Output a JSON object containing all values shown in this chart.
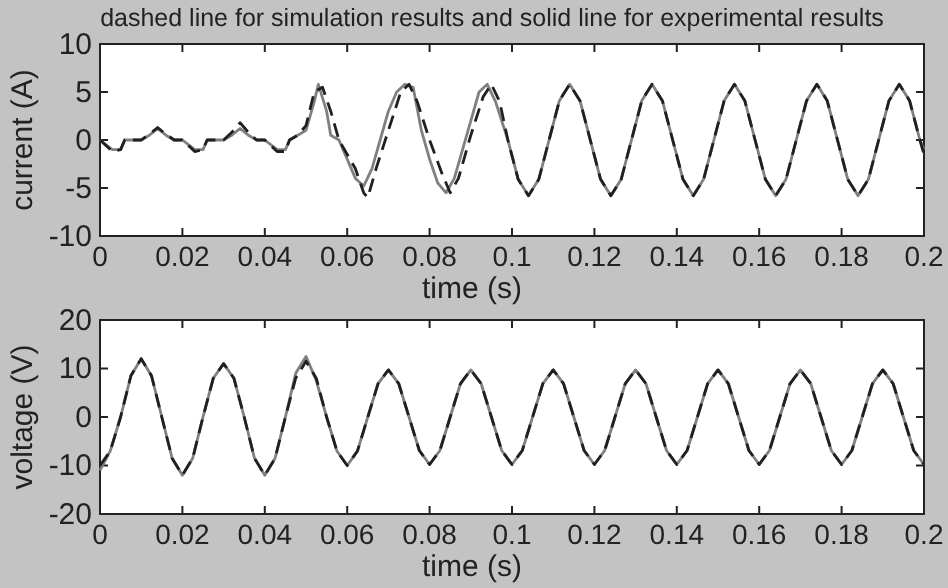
{
  "chart_data": [
    {
      "type": "line",
      "title": "dashed line for simulation results and solid line for experimental results",
      "xlabel": "time (s)",
      "ylabel": "current (A)",
      "xlim": [
        0,
        0.2
      ],
      "xticks": [
        0,
        0.02,
        0.04,
        0.06,
        0.08,
        0.1,
        0.12,
        0.14,
        0.16,
        0.18,
        0.2
      ],
      "ylim": [
        -10,
        10
      ],
      "yticks": [
        -10,
        -5,
        0,
        5,
        10
      ],
      "marker": "none",
      "series": [
        {
          "color": "#808080",
          "line_style": "solid",
          "x": [
            0,
            0.003,
            0.005,
            0.006,
            0.01,
            0.012,
            0.014,
            0.016,
            0.018,
            0.02,
            0.023,
            0.025,
            0.026,
            0.03,
            0.032,
            0.034,
            0.036,
            0.038,
            0.04,
            0.043,
            0.045,
            0.046,
            0.048,
            0.05,
            0.052,
            0.053,
            0.055,
            0.056,
            0.058,
            0.06,
            0.062,
            0.064,
            0.066,
            0.068,
            0.07,
            0.072,
            0.074,
            0.076,
            0.078,
            0.08,
            0.082,
            0.084,
            0.086,
            0.088,
            0.09,
            0.092,
            0.094,
            0.096,
            0.099,
            0.1015,
            0.104,
            0.1065,
            0.109,
            0.1115,
            0.114,
            0.1165,
            0.119,
            0.1215,
            0.124,
            0.1265,
            0.129,
            0.1315,
            0.134,
            0.1365,
            0.139,
            0.1415,
            0.144,
            0.1465,
            0.149,
            0.1515,
            0.154,
            0.1565,
            0.159,
            0.1615,
            0.164,
            0.1665,
            0.169,
            0.1715,
            0.174,
            0.1765,
            0.179,
            0.1815,
            0.184,
            0.1865,
            0.189,
            0.1915,
            0.194,
            0.1965,
            0.199,
            0.2
          ],
          "values": [
            0,
            -1,
            -1,
            0,
            0,
            0.5,
            1.2,
            0.5,
            0,
            0,
            -1,
            -1,
            0,
            0,
            0.5,
            1.2,
            0.5,
            0,
            0,
            -1,
            -1,
            0,
            0.5,
            1,
            4,
            5.8,
            3,
            0.5,
            0,
            -2,
            -4,
            -4.8,
            -3,
            0,
            3,
            5,
            5.8,
            5.5,
            1,
            -2,
            -4.5,
            -5.5,
            -4,
            -1,
            2,
            5,
            5.8,
            4,
            0,
            -4.1,
            -5.8,
            -4.1,
            0,
            4.1,
            5.8,
            4.1,
            0,
            -4.1,
            -5.8,
            -4.1,
            0,
            4.1,
            5.8,
            4.1,
            0,
            -4.1,
            -5.8,
            -4.1,
            0,
            4.1,
            5.8,
            4.1,
            0,
            -4.1,
            -5.8,
            -4.1,
            0,
            4.1,
            5.8,
            4.1,
            0,
            -4.1,
            -5.8,
            -4.1,
            0,
            4.1,
            5.8,
            4.1,
            0,
            -1
          ]
        },
        {
          "color": "#202020",
          "line_style": "dashed",
          "x": [
            0,
            0.003,
            0.005,
            0.006,
            0.01,
            0.012,
            0.014,
            0.016,
            0.018,
            0.02,
            0.023,
            0.025,
            0.026,
            0.03,
            0.032,
            0.034,
            0.036,
            0.038,
            0.04,
            0.043,
            0.045,
            0.046,
            0.048,
            0.05,
            0.052,
            0.054,
            0.056,
            0.058,
            0.062,
            0.064,
            0.065,
            0.067,
            0.07,
            0.073,
            0.075,
            0.077,
            0.08,
            0.083,
            0.085,
            0.087,
            0.09,
            0.093,
            0.095,
            0.097,
            0.099,
            0.1015,
            0.104,
            0.1065,
            0.109,
            0.1115,
            0.114,
            0.1165,
            0.119,
            0.1215,
            0.124,
            0.1265,
            0.129,
            0.1315,
            0.134,
            0.1365,
            0.139,
            0.1415,
            0.144,
            0.1465,
            0.149,
            0.1515,
            0.154,
            0.1565,
            0.159,
            0.1615,
            0.164,
            0.1665,
            0.169,
            0.1715,
            0.174,
            0.1765,
            0.179,
            0.1815,
            0.184,
            0.1865,
            0.189,
            0.1915,
            0.194,
            0.1965,
            0.199,
            0.2
          ],
          "values": [
            0,
            -1.2,
            -1,
            0,
            0,
            0.6,
            1.3,
            0.6,
            0,
            0,
            -1.2,
            -1,
            0,
            0,
            0.8,
            1.8,
            0.8,
            0,
            0,
            -1.2,
            -1.2,
            0,
            0.5,
            1.5,
            5,
            5.5,
            3,
            0,
            -3,
            -5.5,
            -6,
            -3,
            1,
            5,
            5.8,
            4,
            0,
            -3.5,
            -5.5,
            -4,
            0.5,
            4.5,
            5.8,
            4,
            0,
            -4.1,
            -5.8,
            -4.1,
            0,
            4.1,
            5.8,
            4.1,
            0,
            -4.1,
            -5.8,
            -4.1,
            0,
            4.1,
            5.8,
            4.1,
            0,
            -4.1,
            -5.8,
            -4.1,
            0,
            4.1,
            5.8,
            4.1,
            0,
            -4.1,
            -5.8,
            -4.1,
            0,
            4.1,
            5.8,
            4.1,
            0,
            -4.1,
            -5.8,
            -4.1,
            0,
            4.1,
            5.8,
            4.1,
            0,
            -1.5
          ]
        }
      ]
    },
    {
      "type": "line",
      "xlabel": "time (s)",
      "ylabel": "voltage (V)",
      "xlim": [
        0,
        0.2
      ],
      "xticks": [
        0,
        0.02,
        0.04,
        0.06,
        0.08,
        0.1,
        0.12,
        0.14,
        0.16,
        0.18,
        0.2
      ],
      "ylim": [
        -20,
        20
      ],
      "yticks": [
        -20,
        -10,
        0,
        10,
        20
      ],
      "marker": "none",
      "x": [
        0,
        0.0025,
        0.005,
        0.0075,
        0.01,
        0.0125,
        0.015,
        0.0175,
        0.02,
        0.0225,
        0.025,
        0.0275,
        0.03,
        0.0325,
        0.035,
        0.0375,
        0.04,
        0.0425,
        0.045,
        0.0475,
        0.05,
        0.0525,
        0.055,
        0.0575,
        0.06,
        0.0625,
        0.065,
        0.0675,
        0.07,
        0.0725,
        0.075,
        0.0775,
        0.08,
        0.0825,
        0.085,
        0.0875,
        0.09,
        0.0925,
        0.095,
        0.0975,
        0.1,
        0.1025,
        0.105,
        0.1075,
        0.11,
        0.1125,
        0.115,
        0.1175,
        0.12,
        0.1225,
        0.125,
        0.1275,
        0.13,
        0.1325,
        0.135,
        0.1375,
        0.14,
        0.1425,
        0.145,
        0.1475,
        0.15,
        0.1525,
        0.155,
        0.1575,
        0.16,
        0.1625,
        0.165,
        0.1675,
        0.17,
        0.1725,
        0.175,
        0.1775,
        0.18,
        0.1825,
        0.185,
        0.1875,
        0.19,
        0.1925,
        0.195,
        0.1975,
        0.2
      ],
      "series": [
        {
          "color": "#808080",
          "line_style": "solid",
          "values": [
            -11,
            -7,
            0,
            8.5,
            12,
            8.5,
            0,
            -8.5,
            -12,
            -8.5,
            0,
            8,
            11,
            8,
            0,
            -8.5,
            -12,
            -8.5,
            0,
            9,
            12.5,
            7.5,
            0,
            -7,
            -10,
            -7,
            0,
            6.9,
            9.7,
            6.9,
            0,
            -6.9,
            -9.8,
            -6.9,
            0,
            6.9,
            9.7,
            6.9,
            0,
            -6.9,
            -9.8,
            -6.9,
            0,
            6.9,
            9.7,
            6.9,
            0,
            -6.9,
            -9.8,
            -6.9,
            0,
            6.9,
            9.7,
            6.9,
            0,
            -6.9,
            -9.8,
            -6.9,
            0,
            6.9,
            9.7,
            6.9,
            0,
            -6.9,
            -9.8,
            -6.9,
            0,
            6.9,
            9.7,
            6.9,
            0,
            -6.9,
            -9.8,
            -6.9,
            0,
            6.9,
            9.7,
            6.9,
            0,
            -6.9,
            -9.8
          ]
        },
        {
          "color": "#202020",
          "line_style": "dashed",
          "values": [
            -10,
            -7,
            0,
            8.5,
            12,
            8.5,
            0,
            -8.5,
            -12,
            -8.5,
            0,
            8,
            11,
            8,
            0,
            -8.5,
            -12,
            -8.5,
            0,
            8,
            11.5,
            8,
            0,
            -7,
            -10,
            -7,
            0,
            6.9,
            9.7,
            6.9,
            0,
            -6.9,
            -9.8,
            -6.9,
            0,
            6.9,
            9.7,
            6.9,
            0,
            -6.9,
            -9.8,
            -6.9,
            0,
            6.9,
            9.7,
            6.9,
            0,
            -6.9,
            -9.8,
            -6.9,
            0,
            6.9,
            9.7,
            6.9,
            0,
            -6.9,
            -9.8,
            -6.9,
            0,
            6.9,
            9.7,
            6.9,
            0,
            -6.9,
            -9.8,
            -6.9,
            0,
            6.9,
            9.7,
            6.9,
            0,
            -6.9,
            -9.8,
            -6.9,
            0,
            6.9,
            9.7,
            6.9,
            0,
            -6.9,
            -9.8
          ]
        }
      ]
    }
  ]
}
